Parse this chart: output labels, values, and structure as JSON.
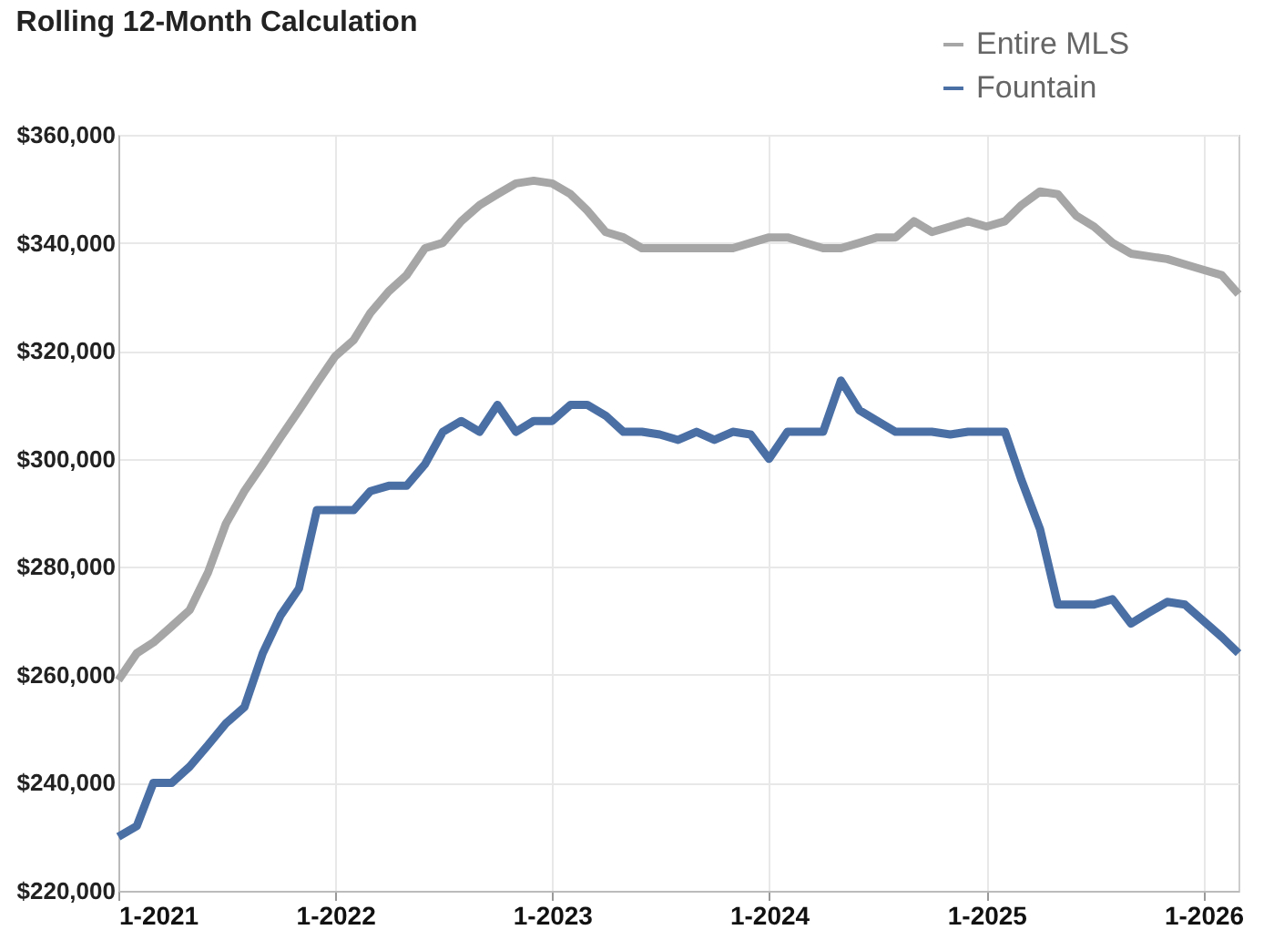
{
  "chart_data": {
    "type": "line",
    "title": "Rolling 12-Month Calculation",
    "x": [
      "2021-01",
      "2021-02",
      "2021-03",
      "2021-04",
      "2021-05",
      "2021-06",
      "2021-07",
      "2021-08",
      "2021-09",
      "2021-10",
      "2021-11",
      "2021-12",
      "2022-01",
      "2022-02",
      "2022-03",
      "2022-04",
      "2022-05",
      "2022-06",
      "2022-07",
      "2022-08",
      "2022-09",
      "2022-10",
      "2022-11",
      "2022-12",
      "2023-01",
      "2023-02",
      "2023-03",
      "2023-04",
      "2023-05",
      "2023-06",
      "2023-07",
      "2023-08",
      "2023-09",
      "2023-10",
      "2023-11",
      "2023-12",
      "2024-01",
      "2024-02",
      "2024-03",
      "2024-04",
      "2024-05",
      "2024-06",
      "2024-07",
      "2024-08",
      "2024-09",
      "2024-10",
      "2024-11",
      "2024-12",
      "2025-01",
      "2025-02",
      "2025-03",
      "2025-04",
      "2025-05",
      "2025-06",
      "2025-07",
      "2025-08",
      "2025-09",
      "2025-10",
      "2025-11",
      "2025-12",
      "2026-01",
      "2026-02",
      "2026-03"
    ],
    "series": [
      {
        "name": "Entire MLS",
        "color": "#a6a6a6",
        "values": [
          259000,
          264000,
          266000,
          269000,
          272000,
          279000,
          288000,
          294000,
          299000,
          304000,
          309000,
          314000,
          319000,
          322000,
          327000,
          331000,
          334000,
          339000,
          340000,
          344000,
          347000,
          349000,
          351000,
          351500,
          351000,
          349000,
          346000,
          342000,
          341000,
          339000,
          339000,
          339000,
          339000,
          339000,
          339000,
          340000,
          341000,
          341000,
          340000,
          339000,
          339000,
          340000,
          341000,
          341000,
          344000,
          342000,
          343000,
          344000,
          343000,
          344000,
          347000,
          349500,
          349000,
          345000,
          343000,
          340000,
          338000,
          337500,
          337000,
          336000,
          335000,
          334000,
          330500
        ]
      },
      {
        "name": "Fountain",
        "color": "#4a6fa5",
        "values": [
          230000,
          232000,
          240000,
          240000,
          243000,
          247000,
          251000,
          254000,
          264000,
          271000,
          276000,
          290500,
          290500,
          290500,
          294000,
          295000,
          295000,
          299000,
          305000,
          307000,
          305000,
          310000,
          305000,
          307000,
          307000,
          310000,
          310000,
          308000,
          305000,
          305000,
          304500,
          303500,
          305000,
          303500,
          305000,
          304500,
          300000,
          305000,
          305000,
          305000,
          314500,
          309000,
          307000,
          305000,
          305000,
          305000,
          304500,
          305000,
          305000,
          305000,
          296000,
          287000,
          273000,
          273000,
          273000,
          274000,
          269500,
          271500,
          273500,
          273000,
          270000,
          267000,
          264000
        ]
      }
    ],
    "xlim": [
      "2021-01",
      "2026-03"
    ],
    "xticks": [
      {
        "value": "2021-01",
        "label": "1-2021"
      },
      {
        "value": "2022-01",
        "label": "1-2022"
      },
      {
        "value": "2023-01",
        "label": "1-2023"
      },
      {
        "value": "2024-01",
        "label": "1-2024"
      },
      {
        "value": "2025-01",
        "label": "1-2025"
      },
      {
        "value": "2026-01",
        "label": "1-2026"
      }
    ],
    "ylim": [
      220000,
      360000
    ],
    "yticks": [
      {
        "value": 220000,
        "label": "$220,000"
      },
      {
        "value": 240000,
        "label": "$240,000"
      },
      {
        "value": 260000,
        "label": "$260,000"
      },
      {
        "value": 280000,
        "label": "$280,000"
      },
      {
        "value": 300000,
        "label": "$300,000"
      },
      {
        "value": 320000,
        "label": "$320,000"
      },
      {
        "value": 340000,
        "label": "$340,000"
      },
      {
        "value": 360000,
        "label": "$360,000"
      }
    ],
    "grid": true,
    "legend": "top right",
    "marker": "none",
    "line_style": "solid"
  }
}
